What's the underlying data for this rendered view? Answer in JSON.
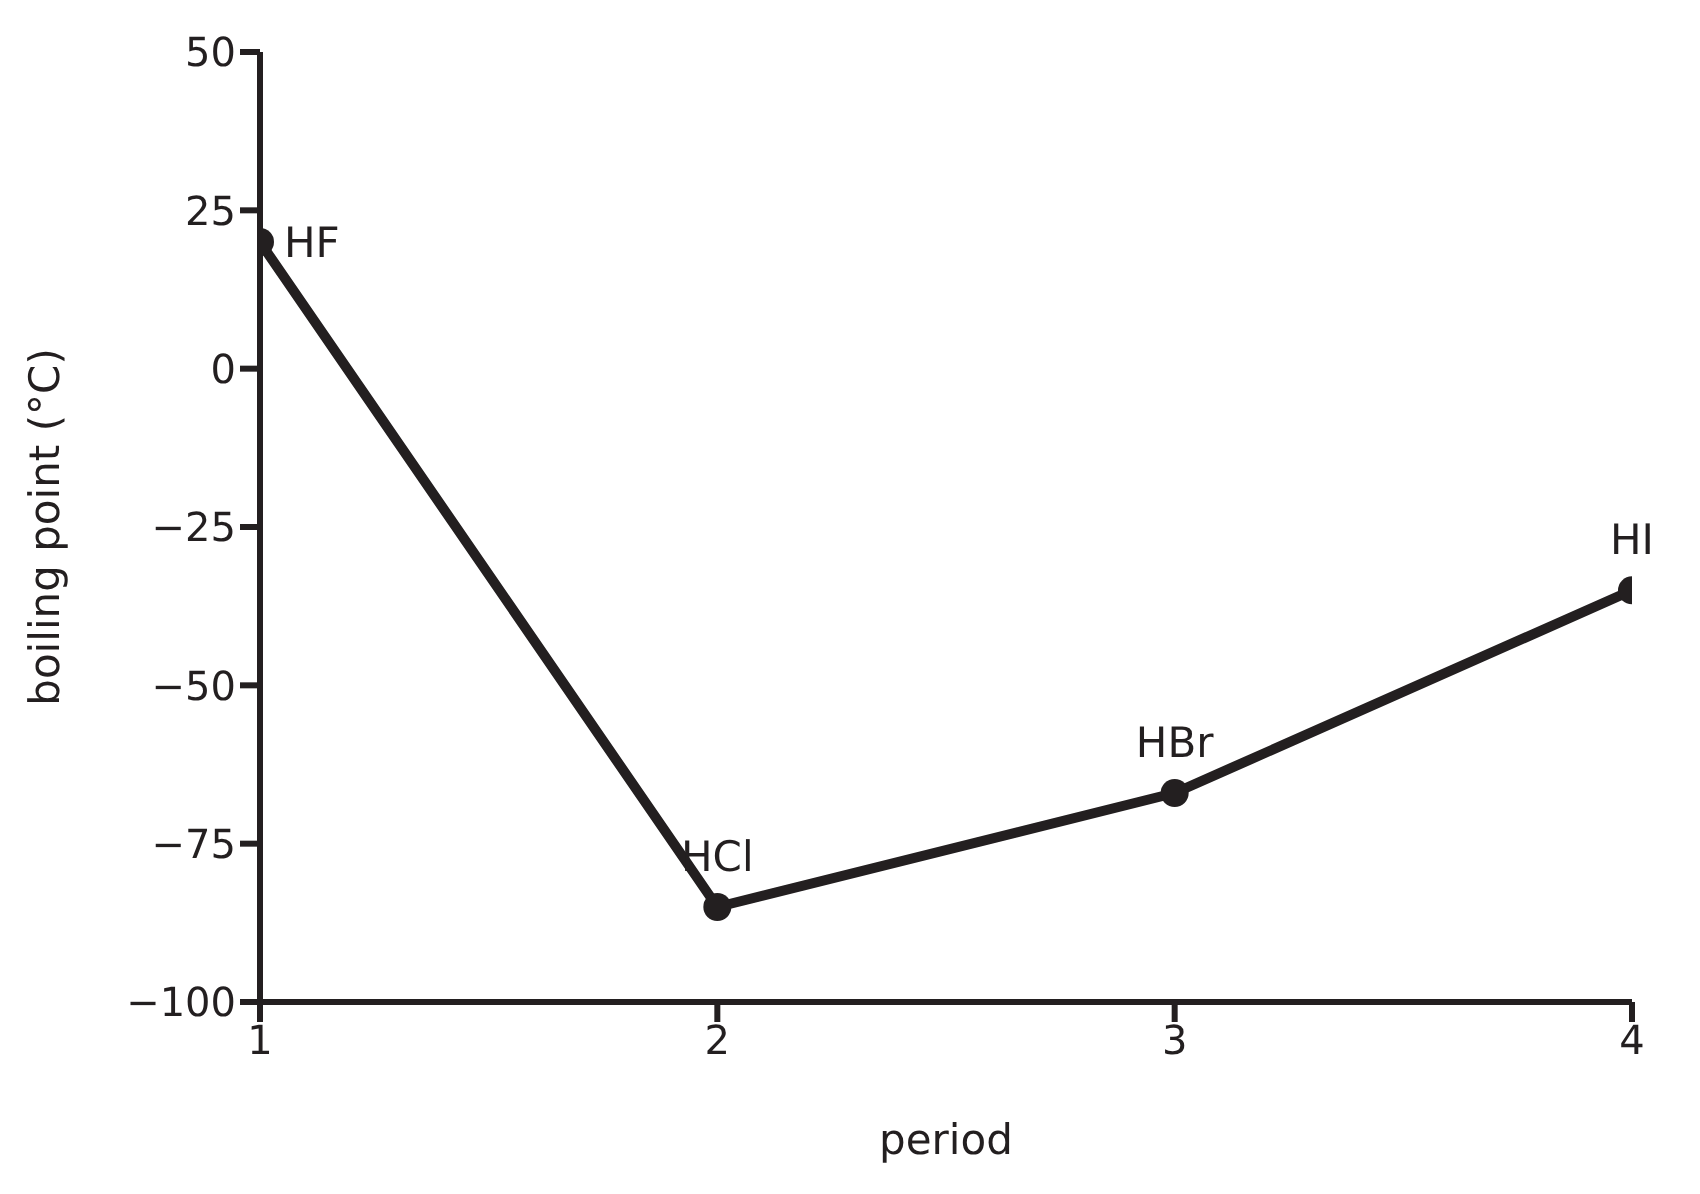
{
  "chart_data": {
    "type": "line",
    "xlabel": "period",
    "ylabel": "boiling point (°C)",
    "x": [
      1,
      2,
      3,
      4
    ],
    "series": [
      {
        "color": "#231f20",
        "values": [
          20,
          -85,
          -67,
          -35
        ]
      }
    ],
    "xlim": [
      1,
      4
    ],
    "xticks": [
      1,
      2,
      3,
      4
    ],
    "ylim": [
      -100,
      50
    ],
    "yticks": [
      {
        "value": -100,
        "label": "−100"
      },
      {
        "value": -75,
        "label": "−75"
      },
      {
        "value": -50,
        "label": "−50"
      },
      {
        "value": -25,
        "label": "−25"
      },
      0,
      25,
      50
    ],
    "grid": false,
    "legend": false,
    "marker": "circle",
    "line_style": "solid",
    "annotations": [
      {
        "text": "HF",
        "x": 1,
        "y": 20
      },
      {
        "text": "HCl",
        "x": 2,
        "y": -85
      },
      {
        "text": "HBr",
        "x": 3,
        "y": -67
      },
      {
        "text": "HI",
        "x": 4,
        "y": -35
      }
    ]
  }
}
